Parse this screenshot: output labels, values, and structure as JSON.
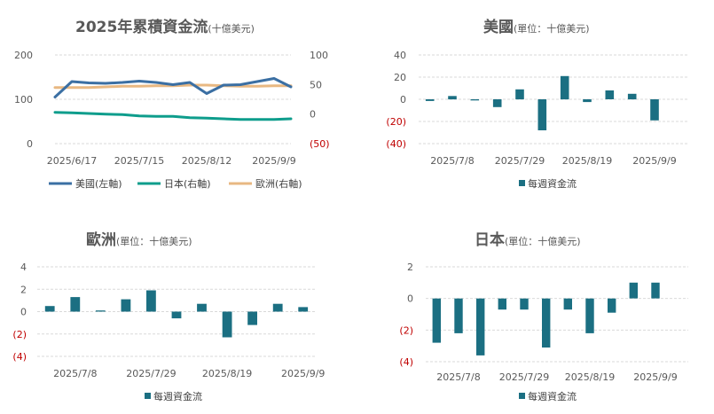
{
  "colors": {
    "us": "#3b6fa3",
    "jp": "#0e9d8c",
    "eu": "#e8b882",
    "bar": "#1b6f82",
    "neg_label": "#c00000"
  },
  "charts": [
    {
      "id": "cumulative",
      "title": "2025年累積資金流",
      "subtitle": "(十億美元)",
      "left_ticks": [
        "200",
        "100",
        "0"
      ],
      "right_ticks": [
        "100",
        "50",
        "0",
        "(50)"
      ],
      "x_labels": [
        "2025/6/17",
        "2025/7/15",
        "2025/8/12",
        "2025/9/9"
      ],
      "legend": [
        "美國(左軸)",
        "日本(右軸)",
        "歐洲(右軸)"
      ]
    },
    {
      "id": "us",
      "title": "美國",
      "subtitle": "(單位：十億美元)",
      "y_ticks": [
        "40",
        "20",
        "0",
        "(20)",
        "(40)"
      ],
      "x_labels": [
        "2025/7/8",
        "2025/7/29",
        "2025/8/19",
        "2025/9/9"
      ],
      "legend": "每週資金流"
    },
    {
      "id": "eu",
      "title": "歐洲",
      "subtitle": "(單位：十億美元)",
      "y_ticks": [
        "4",
        "2",
        "0",
        "(2)",
        "(4)"
      ],
      "x_labels": [
        "2025/7/8",
        "2025/7/29",
        "2025/8/19",
        "2025/9/9"
      ],
      "legend": "每週資金流"
    },
    {
      "id": "jp",
      "title": "日本",
      "subtitle": "(單位：十億美元)",
      "y_ticks": [
        "2",
        "0",
        "(2)",
        "(4)"
      ],
      "x_labels": [
        "2025/7/8",
        "2025/7/29",
        "2025/8/19",
        "2025/9/9"
      ],
      "legend": "每週資金流"
    }
  ],
  "chart_data": [
    {
      "type": "line",
      "x_range": [
        "2025-06-10",
        "2025-09-16"
      ],
      "ylim_left": [
        0,
        200
      ],
      "ylim_right": [
        -50,
        100
      ],
      "series": [
        {
          "name": "美國(左軸)",
          "axis": "left",
          "points": [
            [
              "2025-06-10",
              105
            ],
            [
              "2025-06-17",
              140
            ],
            [
              "2025-06-24",
              137
            ],
            [
              "2025-07-01",
              136
            ],
            [
              "2025-07-08",
              138
            ],
            [
              "2025-07-15",
              141
            ],
            [
              "2025-07-22",
              138
            ],
            [
              "2025-07-29",
              133
            ],
            [
              "2025-08-05",
              138
            ],
            [
              "2025-08-12",
              113
            ],
            [
              "2025-08-19",
              132
            ],
            [
              "2025-08-26",
              133
            ],
            [
              "2025-09-02",
              140
            ],
            [
              "2025-09-09",
              147
            ],
            [
              "2025-09-16",
              128
            ]
          ]
        },
        {
          "name": "日本(右軸)",
          "axis": "right",
          "points": [
            [
              "2025-06-10",
              3
            ],
            [
              "2025-06-17",
              2
            ],
            [
              "2025-06-24",
              1
            ],
            [
              "2025-07-01",
              0
            ],
            [
              "2025-07-08",
              -1
            ],
            [
              "2025-07-15",
              -3
            ],
            [
              "2025-07-22",
              -4
            ],
            [
              "2025-07-29",
              -4
            ],
            [
              "2025-08-05",
              -6
            ],
            [
              "2025-08-12",
              -7
            ],
            [
              "2025-08-19",
              -8
            ],
            [
              "2025-08-26",
              -9
            ],
            [
              "2025-09-02",
              -9
            ],
            [
              "2025-09-09",
              -9
            ],
            [
              "2025-09-16",
              -8
            ]
          ]
        },
        {
          "name": "歐洲(右軸)",
          "axis": "right",
          "points": [
            [
              "2025-06-10",
              45
            ],
            [
              "2025-06-17",
              45
            ],
            [
              "2025-06-24",
              45
            ],
            [
              "2025-07-01",
              46
            ],
            [
              "2025-07-08",
              47
            ],
            [
              "2025-07-15",
              47
            ],
            [
              "2025-07-22",
              48
            ],
            [
              "2025-07-29",
              48
            ],
            [
              "2025-08-05",
              49
            ],
            [
              "2025-08-12",
              49
            ],
            [
              "2025-08-19",
              48
            ],
            [
              "2025-08-26",
              47
            ],
            [
              "2025-09-02",
              47
            ],
            [
              "2025-09-09",
              48
            ],
            [
              "2025-09-16",
              48
            ]
          ]
        }
      ]
    },
    {
      "type": "bar",
      "ylim": [
        -40,
        40
      ],
      "categories": [
        "2025-07-01",
        "2025-07-08",
        "2025-07-15",
        "2025-07-22",
        "2025-07-29",
        "2025-08-05",
        "2025-08-12",
        "2025-08-19",
        "2025-08-26",
        "2025-09-02",
        "2025-09-09",
        "2025-09-16"
      ],
      "values": [
        -1.5,
        3,
        -1,
        -7,
        9,
        -28,
        21,
        -2.5,
        8,
        5,
        -19,
        0
      ],
      "legend": "每週資金流"
    },
    {
      "type": "bar",
      "ylim": [
        -4,
        4
      ],
      "categories": [
        "2025-07-01",
        "2025-07-08",
        "2025-07-15",
        "2025-07-22",
        "2025-07-29",
        "2025-08-05",
        "2025-08-12",
        "2025-08-19",
        "2025-08-26",
        "2025-09-02",
        "2025-09-09"
      ],
      "values": [
        0.5,
        1.3,
        0.1,
        1.1,
        1.9,
        -0.6,
        0.7,
        -2.3,
        -1.2,
        0.7,
        0.4
      ],
      "legend": "每週資金流"
    },
    {
      "type": "bar",
      "ylim": [
        -4,
        2
      ],
      "categories": [
        "2025-07-01",
        "2025-07-08",
        "2025-07-15",
        "2025-07-22",
        "2025-07-29",
        "2025-08-05",
        "2025-08-12",
        "2025-08-19",
        "2025-08-26",
        "2025-09-02",
        "2025-09-09",
        "2025-09-16"
      ],
      "values": [
        -2.8,
        -2.2,
        -3.6,
        -0.7,
        -0.7,
        -3.1,
        -0.7,
        -2.2,
        -0.9,
        1.0,
        1.0,
        0
      ],
      "legend": "每週資金流"
    }
  ]
}
